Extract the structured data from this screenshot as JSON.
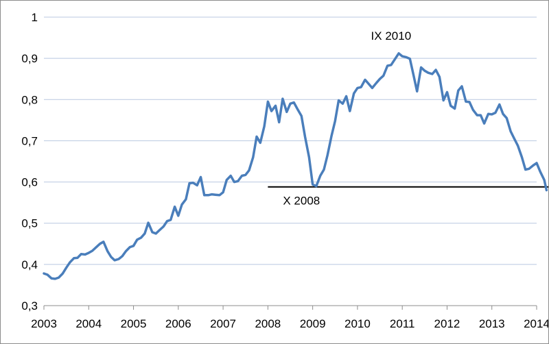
{
  "chart_data": {
    "type": "line",
    "title": "",
    "xlabel": "",
    "ylabel": "",
    "xlim": [
      2003,
      2014
    ],
    "ylim": [
      0.3,
      1.0
    ],
    "x_ticks": [
      "2003",
      "2004",
      "2005",
      "2006",
      "2007",
      "2008",
      "2009",
      "2010",
      "2011",
      "2012",
      "2013",
      "2014"
    ],
    "y_ticks": [
      "0,3",
      "0,4",
      "0,5",
      "0,6",
      "0,7",
      "0,8",
      "0,9",
      "1"
    ],
    "y_tick_values": [
      0.3,
      0.4,
      0.5,
      0.6,
      0.7,
      0.8,
      0.9,
      1.0
    ],
    "grid": "horizontal",
    "legend": "none",
    "series": [
      {
        "color": "#4a7ebb",
        "points": [
          [
            2003.0,
            0.378
          ],
          [
            2003.08,
            0.375
          ],
          [
            2003.17,
            0.366
          ],
          [
            2003.25,
            0.365
          ],
          [
            2003.33,
            0.368
          ],
          [
            2003.42,
            0.378
          ],
          [
            2003.5,
            0.392
          ],
          [
            2003.58,
            0.405
          ],
          [
            2003.67,
            0.415
          ],
          [
            2003.75,
            0.416
          ],
          [
            2003.83,
            0.425
          ],
          [
            2003.92,
            0.424
          ],
          [
            2004.0,
            0.428
          ],
          [
            2004.08,
            0.433
          ],
          [
            2004.17,
            0.442
          ],
          [
            2004.25,
            0.45
          ],
          [
            2004.33,
            0.455
          ],
          [
            2004.42,
            0.432
          ],
          [
            2004.5,
            0.418
          ],
          [
            2004.58,
            0.41
          ],
          [
            2004.67,
            0.413
          ],
          [
            2004.75,
            0.42
          ],
          [
            2004.83,
            0.432
          ],
          [
            2004.92,
            0.442
          ],
          [
            2005.0,
            0.445
          ],
          [
            2005.08,
            0.46
          ],
          [
            2005.17,
            0.465
          ],
          [
            2005.25,
            0.475
          ],
          [
            2005.33,
            0.501
          ],
          [
            2005.42,
            0.478
          ],
          [
            2005.5,
            0.475
          ],
          [
            2005.58,
            0.483
          ],
          [
            2005.67,
            0.492
          ],
          [
            2005.75,
            0.505
          ],
          [
            2005.83,
            0.508
          ],
          [
            2005.92,
            0.54
          ],
          [
            2006.0,
            0.518
          ],
          [
            2006.08,
            0.545
          ],
          [
            2006.17,
            0.558
          ],
          [
            2006.25,
            0.597
          ],
          [
            2006.33,
            0.598
          ],
          [
            2006.42,
            0.592
          ],
          [
            2006.5,
            0.612
          ],
          [
            2006.58,
            0.568
          ],
          [
            2006.67,
            0.568
          ],
          [
            2006.75,
            0.57
          ],
          [
            2006.83,
            0.569
          ],
          [
            2006.92,
            0.568
          ],
          [
            2007.0,
            0.575
          ],
          [
            2007.08,
            0.605
          ],
          [
            2007.17,
            0.615
          ],
          [
            2007.25,
            0.6
          ],
          [
            2007.33,
            0.602
          ],
          [
            2007.42,
            0.615
          ],
          [
            2007.5,
            0.617
          ],
          [
            2007.58,
            0.628
          ],
          [
            2007.67,
            0.66
          ],
          [
            2007.75,
            0.71
          ],
          [
            2007.83,
            0.695
          ],
          [
            2007.92,
            0.735
          ],
          [
            2008.0,
            0.795
          ],
          [
            2008.08,
            0.772
          ],
          [
            2008.17,
            0.785
          ],
          [
            2008.25,
            0.745
          ],
          [
            2008.33,
            0.802
          ],
          [
            2008.42,
            0.77
          ],
          [
            2008.5,
            0.79
          ],
          [
            2008.58,
            0.793
          ],
          [
            2008.67,
            0.775
          ],
          [
            2008.75,
            0.76
          ],
          [
            2008.83,
            0.71
          ],
          [
            2008.92,
            0.66
          ],
          [
            2009.0,
            0.594
          ],
          [
            2009.08,
            0.59
          ],
          [
            2009.17,
            0.615
          ],
          [
            2009.25,
            0.63
          ],
          [
            2009.33,
            0.665
          ],
          [
            2009.42,
            0.712
          ],
          [
            2009.5,
            0.748
          ],
          [
            2009.58,
            0.798
          ],
          [
            2009.67,
            0.79
          ],
          [
            2009.75,
            0.808
          ],
          [
            2009.83,
            0.772
          ],
          [
            2009.92,
            0.815
          ],
          [
            2010.0,
            0.828
          ],
          [
            2010.08,
            0.83
          ],
          [
            2010.17,
            0.848
          ],
          [
            2010.25,
            0.838
          ],
          [
            2010.33,
            0.828
          ],
          [
            2010.42,
            0.84
          ],
          [
            2010.5,
            0.85
          ],
          [
            2010.58,
            0.858
          ],
          [
            2010.67,
            0.882
          ],
          [
            2010.75,
            0.884
          ],
          [
            2010.83,
            0.897
          ],
          [
            2010.92,
            0.912
          ],
          [
            2011.0,
            0.905
          ],
          [
            2011.08,
            0.903
          ],
          [
            2011.17,
            0.899
          ],
          [
            2011.25,
            0.86
          ],
          [
            2011.33,
            0.82
          ],
          [
            2011.42,
            0.878
          ],
          [
            2011.5,
            0.87
          ],
          [
            2011.58,
            0.865
          ],
          [
            2011.67,
            0.862
          ],
          [
            2011.75,
            0.872
          ],
          [
            2011.83,
            0.855
          ],
          [
            2011.92,
            0.798
          ],
          [
            2012.0,
            0.818
          ],
          [
            2012.08,
            0.785
          ],
          [
            2012.17,
            0.778
          ],
          [
            2012.25,
            0.822
          ],
          [
            2012.33,
            0.832
          ],
          [
            2012.42,
            0.795
          ],
          [
            2012.5,
            0.794
          ],
          [
            2012.58,
            0.775
          ],
          [
            2012.67,
            0.762
          ],
          [
            2012.75,
            0.762
          ],
          [
            2012.83,
            0.742
          ],
          [
            2012.92,
            0.765
          ],
          [
            2013.0,
            0.764
          ],
          [
            2013.08,
            0.768
          ],
          [
            2013.17,
            0.788
          ],
          [
            2013.25,
            0.765
          ],
          [
            2013.33,
            0.755
          ],
          [
            2013.42,
            0.723
          ],
          [
            2013.5,
            0.705
          ],
          [
            2013.58,
            0.688
          ],
          [
            2013.67,
            0.66
          ],
          [
            2013.75,
            0.63
          ],
          [
            2013.83,
            0.632
          ],
          [
            2013.92,
            0.64
          ],
          [
            2014.0,
            0.646
          ],
          [
            2014.08,
            0.625
          ],
          [
            2014.17,
            0.605
          ],
          [
            2014.22,
            0.58
          ]
        ]
      }
    ],
    "reference_line": {
      "y": 0.588,
      "x_start": 2008.0,
      "x_end": 2014.4,
      "color": "#000000"
    },
    "annotations": [
      {
        "text": "IX 2010",
        "x": 2010.75,
        "y": 0.945
      },
      {
        "text": "X 2008",
        "x": 2008.75,
        "y": 0.545
      }
    ]
  }
}
